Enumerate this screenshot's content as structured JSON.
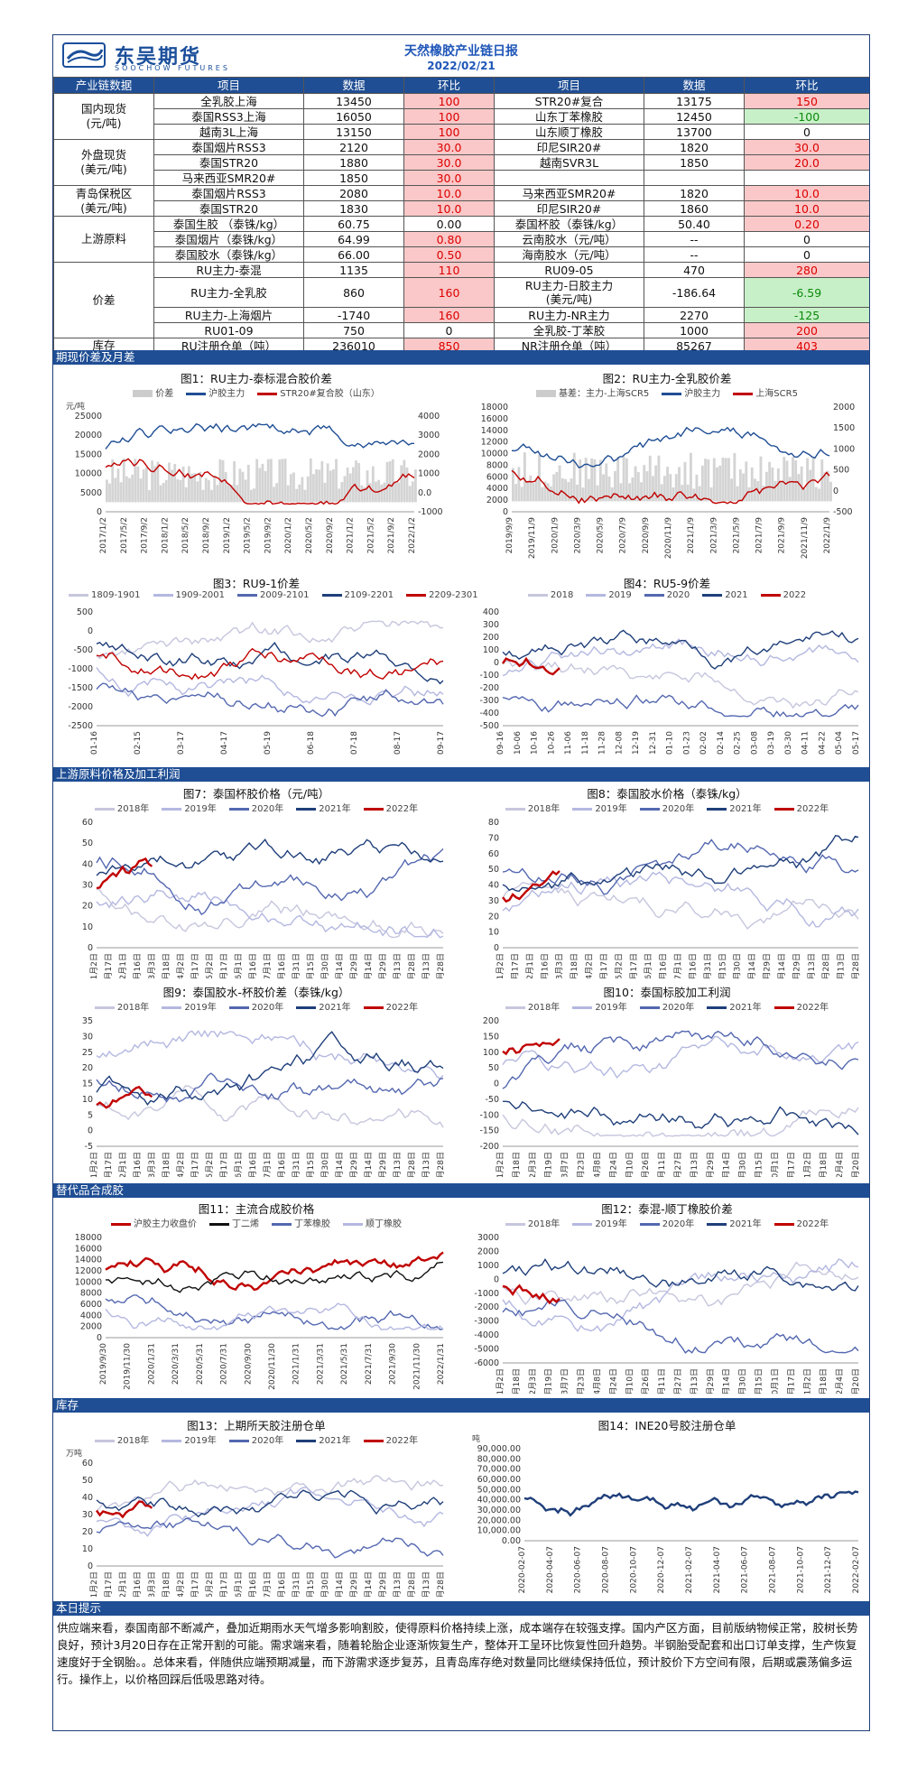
{
  "header": {
    "logo_cn": "东吴期货",
    "logo_en": "SOOCHOW FUTURES",
    "title": "天然橡胶产业链日报",
    "date": "2022/02/21"
  },
  "table": {
    "headers": [
      "产业链数据",
      "项目",
      "数据",
      "环比",
      "项目",
      "数据",
      "环比"
    ],
    "groups": [
      {
        "category": "国内现货\n(元/吨)",
        "rows": [
          {
            "l": [
              "全乳胶上海",
              "13450",
              "100"
            ],
            "r": [
              "STR20#复合",
              "13175",
              "150"
            ]
          },
          {
            "l": [
              "泰国RSS3上海",
              "16050",
              "100"
            ],
            "r": [
              "山东丁苯橡胶",
              "12450",
              "-100"
            ]
          },
          {
            "l": [
              "越南3L上海",
              "13150",
              "100"
            ],
            "r": [
              "山东顺丁橡胶",
              "13700",
              "0"
            ]
          }
        ]
      },
      {
        "category": "外盘现货\n(美元/吨)",
        "rows": [
          {
            "l": [
              "泰国烟片RSS3",
              "2120",
              "30.0"
            ],
            "r": [
              "印尼SIR20#",
              "1820",
              "30.0"
            ]
          },
          {
            "l": [
              "泰国STR20",
              "1880",
              "30.0"
            ],
            "r": [
              "越南SVR3L",
              "1850",
              "20.0"
            ]
          },
          {
            "l": [
              "马来西亚SMR20#",
              "1850",
              "30.0"
            ],
            "r": [
              "",
              "",
              ""
            ]
          }
        ]
      },
      {
        "category": "青岛保税区\n(美元/吨)",
        "rows": [
          {
            "l": [
              "泰国烟片RSS3",
              "2080",
              "10.0"
            ],
            "r": [
              "马来西亚SMR20#",
              "1820",
              "10.0"
            ]
          },
          {
            "l": [
              "泰国STR20",
              "1830",
              "10.0"
            ],
            "r": [
              "印尼SIR20#",
              "1860",
              "10.0"
            ]
          }
        ]
      },
      {
        "category": "上游原料",
        "rows": [
          {
            "l": [
              "泰国生胶 （泰铢/kg）",
              "60.75",
              "0.00"
            ],
            "r": [
              "泰国杯胶（泰铢/kg）",
              "50.40",
              "0.20"
            ]
          },
          {
            "l": [
              "泰国烟片（泰铢/kg）",
              "64.99",
              "0.80"
            ],
            "r": [
              "云南胶水（元/吨）",
              "--",
              "0"
            ]
          },
          {
            "l": [
              "泰国胶水（泰铢/kg）",
              "66.00",
              "0.50"
            ],
            "r": [
              "海南胶水（元/吨）",
              "--",
              "0"
            ]
          }
        ]
      },
      {
        "category": "价差",
        "rows": [
          {
            "l": [
              "RU主力-泰混",
              "1135",
              "110"
            ],
            "r": [
              "RU09-05",
              "470",
              "280"
            ]
          },
          {
            "l": [
              "RU主力-全乳胶",
              "860",
              "160"
            ],
            "r": [
              "RU主力-日胶主力\n(美元/吨)",
              "-186.64",
              "-6.59"
            ],
            "tall": true
          },
          {
            "l": [
              "RU主力-上海烟片",
              "-1740",
              "160"
            ],
            "r": [
              "RU主力-NR主力",
              "2270",
              "-125"
            ]
          },
          {
            "l": [
              "RU01-09",
              "750",
              "0"
            ],
            "r": [
              "全乳胶-丁苯胶",
              "1000",
              "200"
            ]
          }
        ]
      },
      {
        "category": "库存",
        "rows": [
          {
            "l": [
              "RU注册仓单（吨）",
              "236010",
              "850"
            ],
            "r": [
              "NR注册仓单（吨）",
              "85267",
              "403"
            ]
          }
        ]
      }
    ]
  },
  "sections": {
    "s1": "期现价差及月差",
    "s2": "上游原料价格及加工利润",
    "s3": "替代品合成胶",
    "s4": "库存",
    "s5": "本日提示"
  },
  "colors": {
    "navy": "#1f4e94",
    "red": "#c00000",
    "up_bg": "#fac8c8",
    "down_bg": "#c8f0c8"
  },
  "charts": [
    {
      "id": "c1",
      "title": "图1：RU主力-泰标混合胶价差",
      "legend": [
        {
          "name": "价差",
          "color": "#cccccc",
          "thick": true
        },
        {
          "name": "沪胶主力",
          "color": "#1f4e94"
        },
        {
          "name": "STR20#复合胶（山东）",
          "color": "#c00000"
        }
      ],
      "ylabel": "元/吨",
      "yticks": [
        "25000",
        "20000",
        "15000",
        "10000",
        "5000",
        "0"
      ],
      "y2ticks": [
        "4000",
        "3000",
        "2000",
        "1000",
        "0.0",
        "-1000"
      ],
      "xticks": [
        "2017/1/2",
        "2017/5/2",
        "2017/9/2",
        "2018/1/2",
        "2018/5/2",
        "2018/9/2",
        "2019/1/2",
        "2019/5/2",
        "2019/9/2",
        "2020/1/2",
        "2020/5/2",
        "2020/9/2",
        "2021/1/2",
        "2021/5/2",
        "2021/9/2",
        "2022/1/2"
      ]
    },
    {
      "id": "c2",
      "title": "图2：RU主力-全乳胶价差",
      "legend": [
        {
          "name": "基差：主力-上海SCR5",
          "color": "#cccccc",
          "thick": true
        },
        {
          "name": "沪胶主力",
          "color": "#1f4e94"
        },
        {
          "name": "上海SCR5",
          "color": "#c00000"
        }
      ],
      "yticks": [
        "18000",
        "16000",
        "14000",
        "12000",
        "10000",
        "8000",
        "6000",
        "4000",
        "2000",
        "0"
      ],
      "y2ticks": [
        "2000",
        "1500",
        "1000",
        "500",
        "0",
        "-500"
      ],
      "xticks": [
        "2019/9/9",
        "2019/11/9",
        "2020/1/9",
        "2020/3/9",
        "2020/5/9",
        "2020/7/9",
        "2020/9/9",
        "2020/11/9",
        "2021/1/9",
        "2021/3/9",
        "2021/5/9",
        "2021/7/9",
        "2021/9/9",
        "2021/11/9",
        "2022/1/9"
      ]
    },
    {
      "id": "c3",
      "title": "图3：RU9-1价差",
      "legend": [
        {
          "name": "1809-1901",
          "color": "#c6c6de"
        },
        {
          "name": "1909-2001",
          "color": "#b4b8e0"
        },
        {
          "name": "2009-2101",
          "color": "#5468b0"
        },
        {
          "name": "2109-2201",
          "color": "#1f3f7a"
        },
        {
          "name": "2209-2301",
          "color": "#c00000"
        }
      ],
      "yticks": [
        "500",
        "0",
        "-500",
        "-1000",
        "-1500",
        "-2000",
        "-2500"
      ],
      "xticks": [
        "01-16",
        "02-15",
        "03-17",
        "04-17",
        "05-19",
        "06-18",
        "07-18",
        "08-17",
        "09-17"
      ]
    },
    {
      "id": "c4",
      "title": "图4：RU5-9价差",
      "legend": [
        {
          "name": "2018",
          "color": "#c6c6de"
        },
        {
          "name": "2019",
          "color": "#b4b8e0"
        },
        {
          "name": "2020",
          "color": "#5468b0"
        },
        {
          "name": "2021",
          "color": "#1f3f7a"
        },
        {
          "name": "2022",
          "color": "#c00000"
        }
      ],
      "yticks": [
        "400",
        "300",
        "200",
        "100",
        "0",
        "-100",
        "-200",
        "-300",
        "-400",
        "-500"
      ],
      "xticks": [
        "09-16",
        "10-06",
        "10-16",
        "10-26",
        "11-06",
        "11-18",
        "11-28",
        "12-08",
        "12-19",
        "12-31",
        "01-10",
        "01-23",
        "02-02",
        "02-14",
        "02-25",
        "03-08",
        "03-19",
        "03-30",
        "04-11",
        "04-22",
        "05-04",
        "05-17"
      ]
    },
    {
      "id": "c7",
      "title": "图7：泰国杯胶价格（元/吨）",
      "legend": [
        {
          "name": "2018年",
          "color": "#c6c6de"
        },
        {
          "name": "2019年",
          "color": "#b4b8e0"
        },
        {
          "name": "2020年",
          "color": "#5468b0"
        },
        {
          "name": "2021年",
          "color": "#1f3f7a"
        },
        {
          "name": "2022年",
          "color": "#c00000"
        }
      ],
      "yticks": [
        "60",
        "50",
        "40",
        "30",
        "20",
        "10",
        "0"
      ],
      "xticks": [
        "1月2日",
        "1月17日",
        "2月1日",
        "2月16日",
        "3月3日",
        "3月18日",
        "4月2日",
        "4月17日",
        "5月2日",
        "5月17日",
        "6月1日",
        "6月16日",
        "7月1日",
        "7月16日",
        "7月31日",
        "8月15日",
        "8月30日",
        "9月14日",
        "9月29日",
        "10月14日",
        "10月29日",
        "11月13日",
        "11月28日",
        "12月13日",
        "12月28日"
      ]
    },
    {
      "id": "c8",
      "title": "图8：泰国胶水价格（泰铢/kg）",
      "legend": [
        {
          "name": "2018年",
          "color": "#c6c6de"
        },
        {
          "name": "2019年",
          "color": "#b4b8e0"
        },
        {
          "name": "2020年",
          "color": "#5468b0"
        },
        {
          "name": "2021年",
          "color": "#1f3f7a"
        },
        {
          "name": "2022年",
          "color": "#c00000"
        }
      ],
      "yticks": [
        "80",
        "70",
        "60",
        "50",
        "40",
        "30",
        "20",
        "10",
        "0"
      ],
      "xticks": [
        "1月2日",
        "1月17日",
        "2月1日",
        "2月16日",
        "3月3日",
        "3月18日",
        "4月2日",
        "4月17日",
        "5月2日",
        "5月17日",
        "6月1日",
        "6月16日",
        "7月1日",
        "7月16日",
        "7月31日",
        "8月15日",
        "8月30日",
        "9月14日",
        "9月29日",
        "10月14日",
        "10月29日",
        "11月13日",
        "11月28日",
        "12月13日",
        "12月28日"
      ]
    },
    {
      "id": "c9",
      "title": "图9：泰国胶水-杯胶价差（泰铢/kg）",
      "legend": [
        {
          "name": "2018年",
          "color": "#c6c6de"
        },
        {
          "name": "2019年",
          "color": "#b4b8e0"
        },
        {
          "name": "2020年",
          "color": "#5468b0"
        },
        {
          "name": "2021年",
          "color": "#1f3f7a"
        },
        {
          "name": "2022年",
          "color": "#c00000"
        }
      ],
      "yticks": [
        "35",
        "30",
        "25",
        "20",
        "15",
        "10",
        "5",
        "0",
        "-5"
      ],
      "xticks": [
        "1月2日",
        "1月17日",
        "2月1日",
        "2月16日",
        "3月3日",
        "3月18日",
        "4月2日",
        "4月17日",
        "5月2日",
        "5月17日",
        "6月1日",
        "6月16日",
        "7月1日",
        "7月16日",
        "7月31日",
        "8月15日",
        "8月30日",
        "9月14日",
        "9月29日",
        "10月14日",
        "10月29日",
        "11月13日",
        "11月28日",
        "12月13日",
        "12月28日"
      ]
    },
    {
      "id": "c10",
      "title": "图10：泰国标胶加工利润",
      "legend": [
        {
          "name": "2018年",
          "color": "#c6c6de"
        },
        {
          "name": "2019年",
          "color": "#b4b8e0"
        },
        {
          "name": "2020年",
          "color": "#5468b0"
        },
        {
          "name": "2021年",
          "color": "#1f3f7a"
        },
        {
          "name": "2022年",
          "color": "#c00000"
        }
      ],
      "yticks": [
        "200",
        "150",
        "100",
        "50",
        "0",
        "-50",
        "-100",
        "-150",
        "-200"
      ],
      "xticks": [
        "1月2日",
        "1月18日",
        "2月3日",
        "2月19日",
        "3月7日",
        "3月23日",
        "4月8日",
        "4月24日",
        "5月10日",
        "5月26日",
        "6月11日",
        "6月27日",
        "7月13日",
        "7月29日",
        "8月14日",
        "8月30日",
        "9月15日",
        "10月1日",
        "10月17日",
        "11月2日",
        "11月18日",
        "12月4日",
        "12月20日"
      ]
    },
    {
      "id": "c11",
      "title": "图11：主流合成胶价格",
      "legend": [
        {
          "name": "沪胶主力收盘价",
          "color": "#c00000"
        },
        {
          "name": "丁二烯",
          "color": "#111111"
        },
        {
          "name": "丁苯橡胶",
          "color": "#5468b0"
        },
        {
          "name": "顺丁橡胶",
          "color": "#b4b8e0"
        }
      ],
      "yticks": [
        "18000",
        "16000",
        "14000",
        "12000",
        "10000",
        "8000",
        "6000",
        "4000",
        "2000",
        "0"
      ],
      "xticks": [
        "2019/9/30",
        "2019/11/30",
        "2020/1/31",
        "2020/3/31",
        "2020/5/31",
        "2020/7/31",
        "2020/9/30",
        "2020/11/30",
        "2021/1/31",
        "2021/3/31",
        "2021/5/31",
        "2021/7/31",
        "2021/9/30",
        "2021/11/30",
        "2022/1/31"
      ]
    },
    {
      "id": "c12",
      "title": "图12：泰混-顺丁橡胶价差",
      "legend": [
        {
          "name": "2018年",
          "color": "#c6c6de"
        },
        {
          "name": "2019年",
          "color": "#b4b8e0"
        },
        {
          "name": "2020年",
          "color": "#5468b0"
        },
        {
          "name": "2021年",
          "color": "#1f3f7a"
        },
        {
          "name": "2022年",
          "color": "#c00000"
        }
      ],
      "yticks": [
        "3000",
        "2000",
        "1000",
        "0",
        "-1000",
        "-2000",
        "-3000",
        "-4000",
        "-5000",
        "-6000"
      ],
      "xticks": [
        "1月2日",
        "1月18日",
        "2月3日",
        "2月19日",
        "3月7日",
        "3月23日",
        "4月8日",
        "4月24日",
        "5月10日",
        "5月26日",
        "6月11日",
        "6月27日",
        "7月13日",
        "7月29日",
        "8月14日",
        "8月30日",
        "9月15日",
        "10月1日",
        "10月17日",
        "11月2日",
        "11月18日",
        "12月4日",
        "12月20日"
      ]
    },
    {
      "id": "c13",
      "title": "图13：上期所天胶注册仓单",
      "legend": [
        {
          "name": "2018年",
          "color": "#c6c6de"
        },
        {
          "name": "2019年",
          "color": "#b4b8e0"
        },
        {
          "name": "2020年",
          "color": "#5468b0"
        },
        {
          "name": "2021年",
          "color": "#1f3f7a"
        },
        {
          "name": "2022年",
          "color": "#c00000"
        }
      ],
      "ylabel": "万吨",
      "yticks": [
        "60",
        "50",
        "40",
        "30",
        "20",
        "10",
        "0"
      ],
      "xticks": [
        "1月2日",
        "1月17日",
        "2月1日",
        "2月16日",
        "3月3日",
        "3月18日",
        "4月2日",
        "4月17日",
        "5月2日",
        "5月17日",
        "6月1日",
        "6月16日",
        "7月1日",
        "7月16日",
        "7月31日",
        "8月15日",
        "8月30日",
        "9月14日",
        "9月29日",
        "10月14日",
        "10月29日",
        "11月13日",
        "11月28日",
        "12月13日",
        "12月28日"
      ]
    },
    {
      "id": "c14",
      "title": "图14：INE20号胶注册仓单",
      "legend": [],
      "ylabel": "吨",
      "yticks": [
        "90,000.00",
        "80,000.00",
        "70,000.00",
        "60,000.00",
        "50,000.00",
        "40,000.00",
        "30,000.00",
        "20,000.00",
        "10,000.00",
        "0.00"
      ],
      "xticks": [
        "2020-02-07",
        "2020-04-07",
        "2020-06-07",
        "2020-08-07",
        "2020-10-07",
        "2020-12-07",
        "2021-02-07",
        "2021-04-07",
        "2021-06-07",
        "2021-08-07",
        "2021-10-07",
        "2021-12-07",
        "2022-02-07"
      ]
    }
  ],
  "note": "供应端来看，泰国南部不断减产，叠加近期雨水天气增多影响割胶，使得原料价格持续上涨，成本端存在较强支撑。国内产区方面，目前版纳物候正常，胶树长势良好，预计3月20日存在正常开割的可能。需求端来看，随着轮胎企业逐渐恢复生产，整体开工呈环比恢复性回升趋势。半钢胎受配套和出口订单支撑，生产恢复速度好于全钢胎。。总体来看，伴随供应端预期减量，而下游需求逐步复苏，且青岛库存绝对数量同比继续保持低位，预计胶价下方空间有限，后期或震荡偏多运行。操作上，以价格回踩后低吸思路对待。"
}
